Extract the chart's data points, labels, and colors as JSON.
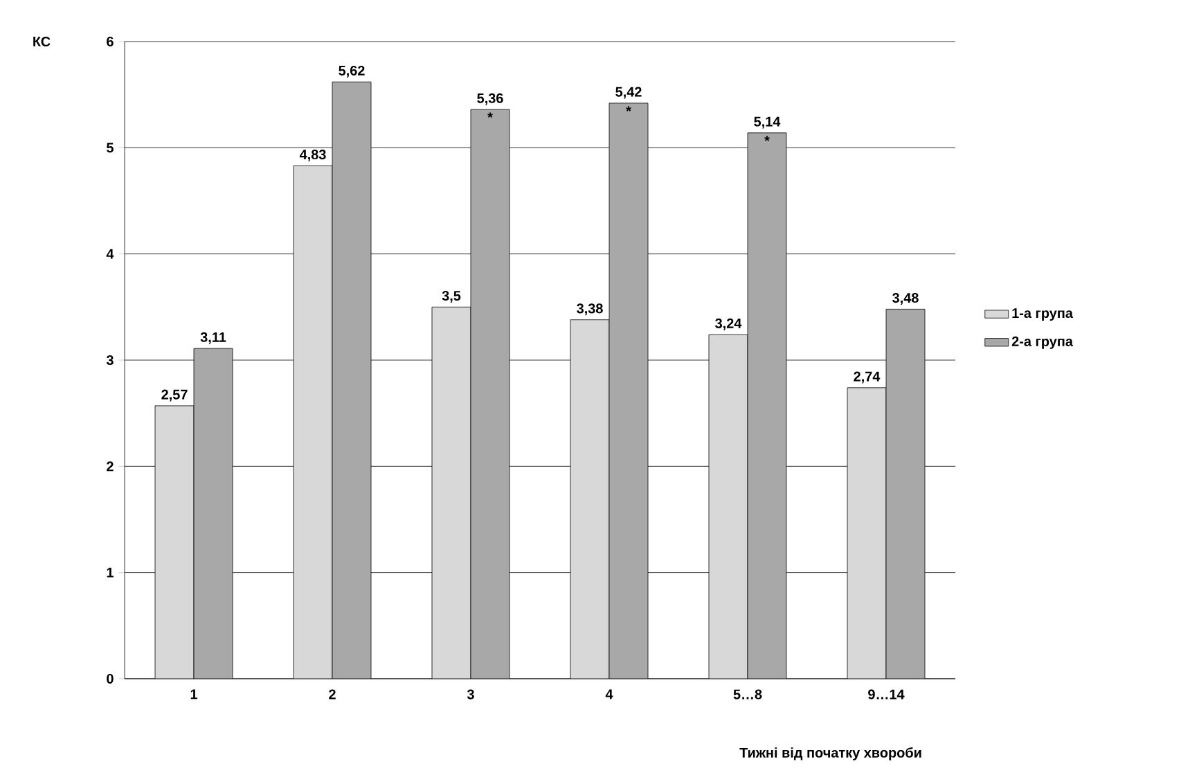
{
  "chart_data": {
    "type": "bar",
    "xlabel": "Тижні від початку хвороби",
    "ylabel": "КС",
    "categories": [
      "1",
      "2",
      "3",
      "4",
      "5…8",
      "9…14"
    ],
    "series": [
      {
        "name": "1-а група",
        "color": "#d8d8d8",
        "values": [
          2.57,
          4.83,
          3.5,
          3.38,
          3.24,
          2.74
        ],
        "value_labels": [
          "2,57",
          "4,83",
          "3,5",
          "3,38",
          "3,24",
          "2,74"
        ]
      },
      {
        "name": "2-а група",
        "color": "#a8a8a8",
        "values": [
          3.11,
          5.62,
          5.36,
          5.42,
          5.14,
          3.48
        ],
        "value_labels": [
          "3,11",
          "5,62",
          "5,36",
          "5,42",
          "5,14",
          "3,48"
        ]
      }
    ],
    "annotations": [
      {
        "text": "*",
        "x": "3",
        "y": 5.36
      },
      {
        "text": "*",
        "x": "4",
        "y": 5.42
      },
      {
        "text": "*",
        "x": "5…8",
        "y": 5.14
      }
    ],
    "ylim": [
      0,
      6
    ],
    "yticks": [
      0,
      1,
      2,
      3,
      4,
      5,
      6
    ],
    "grid": "y",
    "legend": "right"
  }
}
